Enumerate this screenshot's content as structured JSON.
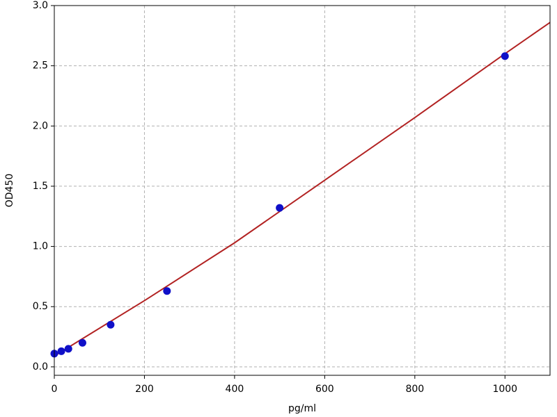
{
  "chart_data": {
    "type": "scatter",
    "xlabel": "pg/ml",
    "ylabel": "OD450",
    "xlim": [
      0,
      1100
    ],
    "ylim": [
      -0.07,
      3.0
    ],
    "xticks": [
      0,
      200,
      400,
      600,
      800,
      1000
    ],
    "yticks": [
      {
        "value": 0,
        "label": "0.0"
      },
      0.5,
      {
        "value": 1,
        "label": "1.0"
      },
      1.5,
      {
        "value": 2,
        "label": "2.0"
      },
      2.5,
      {
        "value": 3,
        "label": "3.0"
      }
    ],
    "grid": true,
    "series": [
      {
        "kind": "points",
        "color": "#1010c8",
        "x": [
          0,
          15.6,
          31.25,
          62.5,
          125,
          250,
          500,
          1000
        ],
        "values": [
          0.11,
          0.13,
          0.15,
          0.2,
          0.35,
          0.63,
          1.32,
          2.58
        ]
      },
      {
        "kind": "line",
        "color": "#b22222",
        "x": [
          0,
          200,
          400,
          600,
          800,
          1000,
          1100
        ],
        "values": [
          0.09,
          0.55,
          1.03,
          1.55,
          2.07,
          2.6,
          2.86
        ]
      }
    ]
  }
}
